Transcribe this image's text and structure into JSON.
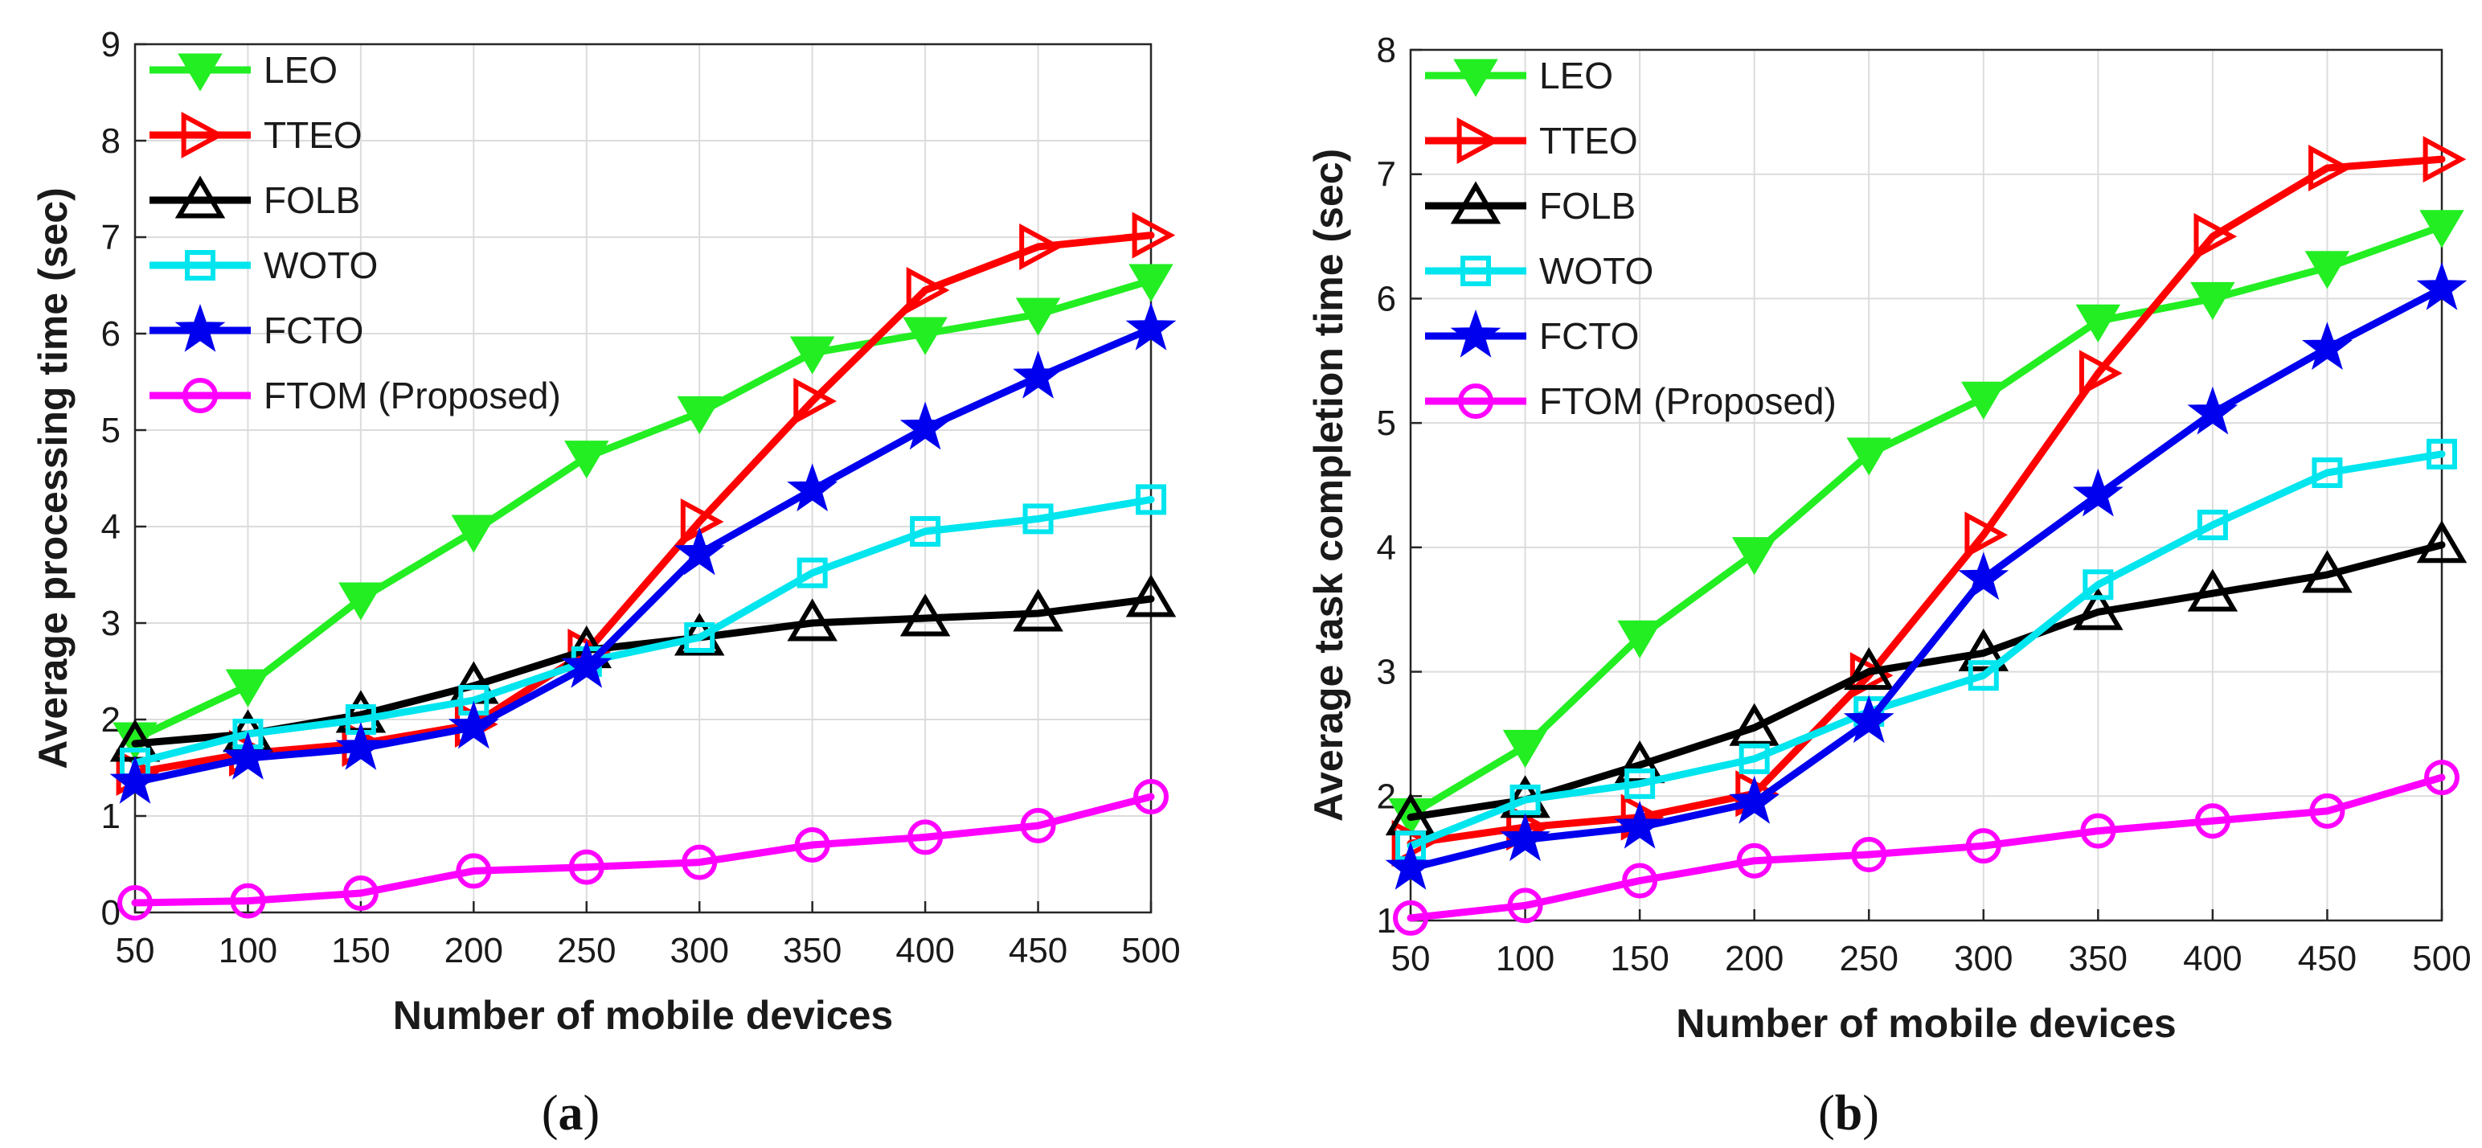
{
  "chart_data": [
    {
      "type": "line",
      "caption_open": "(",
      "caption_letter": "a",
      "caption_close": ")",
      "xlabel": "Number of mobile devices",
      "ylabel": "Average processing time (sec)",
      "x": [
        50,
        100,
        150,
        200,
        250,
        300,
        350,
        400,
        450,
        500
      ],
      "xlim": [
        50,
        500
      ],
      "ylim": [
        0,
        9
      ],
      "yticks": [
        0,
        1,
        2,
        3,
        4,
        5,
        6,
        7,
        8,
        9
      ],
      "grid": true,
      "legend_position": "top-left",
      "series": [
        {
          "name": "LEO",
          "color": "#22ee22",
          "marker": "triangle-down",
          "values": [
            1.8,
            2.35,
            3.25,
            3.95,
            4.72,
            5.18,
            5.8,
            6.0,
            6.2,
            6.55
          ]
        },
        {
          "name": "TTEO",
          "color": "#ff0000",
          "marker": "triangle-right",
          "values": [
            1.45,
            1.65,
            1.75,
            1.95,
            2.7,
            4.05,
            5.3,
            6.45,
            6.9,
            7.02
          ]
        },
        {
          "name": "FOLB",
          "color": "#000000",
          "marker": "triangle-up",
          "values": [
            1.75,
            1.85,
            2.05,
            2.35,
            2.72,
            2.85,
            3.0,
            3.05,
            3.1,
            3.25
          ]
        },
        {
          "name": "WOTO",
          "color": "#00e5ee",
          "marker": "square",
          "values": [
            1.55,
            1.85,
            2.0,
            2.2,
            2.6,
            2.85,
            3.52,
            3.95,
            4.08,
            4.28
          ]
        },
        {
          "name": "FCTO",
          "color": "#0000ee",
          "marker": "star",
          "values": [
            1.35,
            1.6,
            1.7,
            1.92,
            2.55,
            3.72,
            4.38,
            5.02,
            5.55,
            6.05
          ]
        },
        {
          "name": "FTOM (Proposed)",
          "color": "#ff00ff",
          "marker": "circle",
          "values": [
            0.1,
            0.12,
            0.2,
            0.43,
            0.47,
            0.52,
            0.7,
            0.78,
            0.9,
            1.2
          ]
        }
      ]
    },
    {
      "type": "line",
      "caption_open": "(",
      "caption_letter": "b",
      "caption_close": ")",
      "xlabel": "Number of mobile devices",
      "ylabel": "Average task completion time (sec)",
      "x": [
        50,
        100,
        150,
        200,
        250,
        300,
        350,
        400,
        450,
        500
      ],
      "xlim": [
        50,
        500
      ],
      "ylim": [
        1,
        8
      ],
      "yticks": [
        1,
        2,
        3,
        4,
        5,
        6,
        7,
        8
      ],
      "grid": true,
      "legend_position": "top-left",
      "series": [
        {
          "name": "LEO",
          "color": "#22ee22",
          "marker": "triangle-down",
          "values": [
            1.85,
            2.4,
            3.28,
            3.95,
            4.75,
            5.2,
            5.82,
            6.0,
            6.25,
            6.58
          ]
        },
        {
          "name": "TTEO",
          "color": "#ff0000",
          "marker": "triangle-right",
          "values": [
            1.62,
            1.75,
            1.83,
            2.02,
            2.97,
            4.1,
            5.4,
            6.5,
            7.05,
            7.12
          ]
        },
        {
          "name": "FOLB",
          "color": "#000000",
          "marker": "triangle-up",
          "values": [
            1.83,
            1.97,
            2.25,
            2.55,
            3.0,
            3.15,
            3.48,
            3.63,
            3.78,
            4.02
          ]
        },
        {
          "name": "WOTO",
          "color": "#00e5ee",
          "marker": "square",
          "values": [
            1.6,
            1.97,
            2.1,
            2.3,
            2.68,
            2.97,
            3.7,
            4.18,
            4.6,
            4.75
          ]
        },
        {
          "name": "FCTO",
          "color": "#0000ee",
          "marker": "star",
          "values": [
            1.42,
            1.65,
            1.75,
            1.95,
            2.6,
            3.75,
            4.42,
            5.08,
            5.6,
            6.08
          ]
        },
        {
          "name": "FTOM (Proposed)",
          "color": "#ff00ff",
          "marker": "circle",
          "values": [
            1.02,
            1.12,
            1.32,
            1.48,
            1.53,
            1.6,
            1.72,
            1.8,
            1.88,
            2.15
          ]
        }
      ]
    }
  ]
}
